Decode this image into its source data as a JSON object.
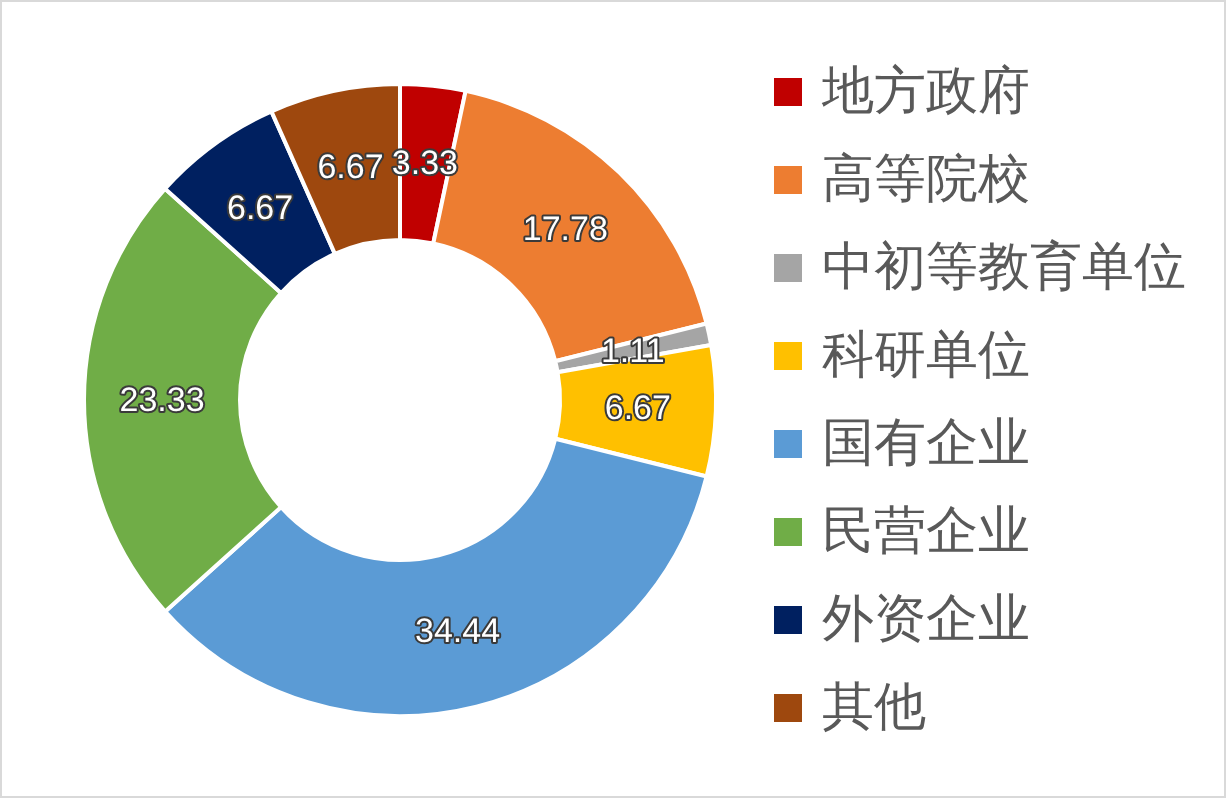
{
  "chart_data": {
    "type": "donut",
    "categories": [
      "地方政府",
      "高等院校",
      "中初等教育单位",
      "科研单位",
      "国有企业",
      "民营企业",
      "外资企业",
      "其他"
    ],
    "values": [
      3.33,
      17.78,
      1.11,
      6.67,
      34.44,
      23.33,
      6.67,
      6.67
    ],
    "colors": [
      "#c00000",
      "#ed7d31",
      "#a5a5a5",
      "#ffc000",
      "#5b9bd5",
      "#70ad47",
      "#002060",
      "#9e480e"
    ],
    "data_labels": true,
    "legend": "right"
  }
}
